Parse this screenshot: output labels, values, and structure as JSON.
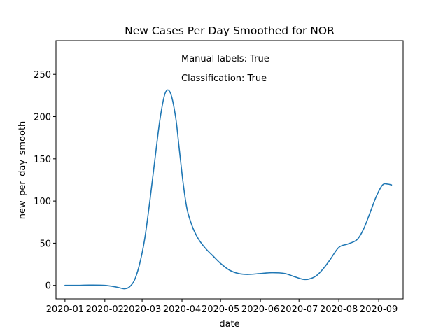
{
  "chart_data": {
    "type": "line",
    "title": "New Cases Per Day Smoothed for NOR",
    "xlabel": "date",
    "ylabel": "new_per_day_smooth",
    "annotations": [
      "Manual labels: True",
      "Classification: True"
    ],
    "x_ticks": [
      "2020-01",
      "2020-02",
      "2020-03",
      "2020-04",
      "2020-05",
      "2020-06",
      "2020-07",
      "2020-08",
      "2020-09"
    ],
    "y_ticks": [
      0,
      50,
      100,
      150,
      200,
      250
    ],
    "xlim": [
      "2019-12-25",
      "2020-09-20"
    ],
    "ylim": [
      -16,
      290
    ],
    "grid": false,
    "color": "#1f77b4",
    "series": [
      {
        "x": [
          "2020-01-01",
          "2020-01-10",
          "2020-01-20",
          "2020-02-01",
          "2020-02-10",
          "2020-02-16",
          "2020-02-20",
          "2020-02-24",
          "2020-02-28",
          "2020-03-03",
          "2020-03-07",
          "2020-03-11",
          "2020-03-15",
          "2020-03-19",
          "2020-03-23",
          "2020-03-27",
          "2020-03-30",
          "2020-04-02",
          "2020-04-05",
          "2020-04-09",
          "2020-04-13",
          "2020-04-17",
          "2020-04-21",
          "2020-04-25",
          "2020-05-01",
          "2020-05-08",
          "2020-05-15",
          "2020-05-22",
          "2020-06-01",
          "2020-06-10",
          "2020-06-20",
          "2020-06-28",
          "2020-07-05",
          "2020-07-10",
          "2020-07-15",
          "2020-07-20",
          "2020-07-25",
          "2020-08-01",
          "2020-08-08",
          "2020-08-15",
          "2020-08-20",
          "2020-08-25",
          "2020-08-30",
          "2020-09-04",
          "2020-09-08",
          "2020-09-11"
        ],
        "y": [
          0,
          0,
          0.3,
          0,
          -2,
          -4,
          -2,
          6,
          25,
          55,
          100,
          150,
          198,
          228,
          228,
          200,
          160,
          120,
          90,
          70,
          57,
          48,
          41,
          35,
          26,
          18,
          14,
          13,
          14,
          15,
          14,
          10,
          7,
          8,
          12,
          20,
          30,
          45,
          49,
          54,
          66,
          85,
          105,
          119,
          120,
          119
        ]
      }
    ]
  }
}
